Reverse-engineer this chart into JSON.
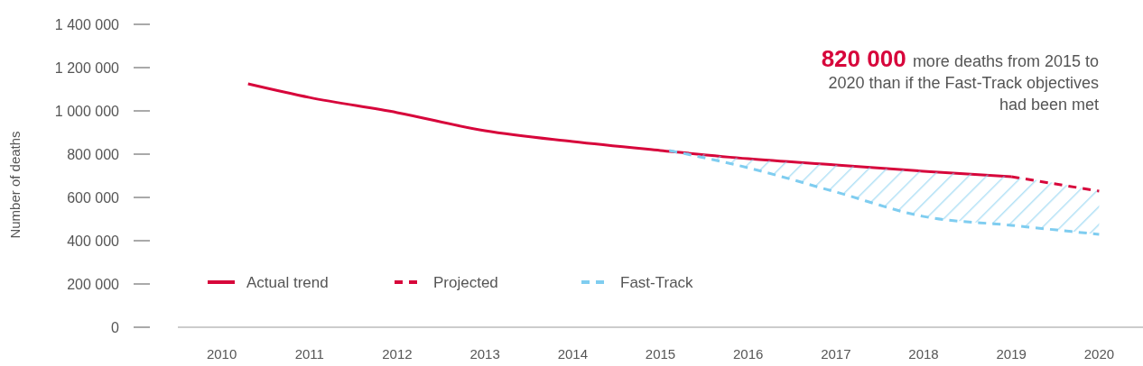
{
  "chart_data": {
    "type": "line",
    "ylabel": "Number of deaths",
    "xlim": [
      2009.5,
      2020.5
    ],
    "xticks": [
      2010,
      2011,
      2012,
      2013,
      2014,
      2015,
      2016,
      2017,
      2018,
      2019,
      2020
    ],
    "ylim": [
      0,
      1400000
    ],
    "yticks": [
      0,
      {
        "value": 200000,
        "label": "200 000"
      },
      {
        "value": 400000,
        "label": "400 000"
      },
      {
        "value": 600000,
        "label": "600 000"
      },
      {
        "value": 800000,
        "label": "800 000"
      },
      {
        "value": 1000000,
        "label": "1 000 000"
      },
      {
        "value": 1200000,
        "label": "1 200 000"
      },
      {
        "value": 1400000,
        "label": "1 400 000"
      }
    ],
    "grid": false,
    "legend": "bottom left",
    "marker": "none",
    "annotations": [
      "820 000 more deaths from 2015 to 2020 than if the Fast-Track objectives  had been met"
    ],
    "series": [
      {
        "name": "Actual trend",
        "color": "#d7063b",
        "line_style": "solid",
        "x": [
          2010.3,
          2011,
          2012,
          2013,
          2014,
          2015,
          2016,
          2017,
          2018,
          2019
        ],
        "values": [
          1125000,
          1062000,
          992000,
          908000,
          858000,
          817000,
          779000,
          750000,
          721000,
          696000
        ]
      },
      {
        "name": "Projected",
        "color": "#d7063b",
        "line_style": "dashed",
        "x": [
          2019,
          2020
        ],
        "values": [
          696000,
          629000
        ]
      },
      {
        "name": "Fast-Track",
        "color": "#7fcdf0",
        "line_style": "dashed",
        "x": [
          2015.1,
          2016,
          2017,
          2018,
          2019,
          2020
        ],
        "values": [
          817000,
          737000,
          625000,
          512000,
          471000,
          429000
        ],
        "lower": [
          817000,
          737000,
          625000,
          512000,
          471000,
          429000
        ],
        "upper": [
          817000,
          779000,
          750000,
          721000,
          696000,
          629000
        ]
      }
    ]
  }
}
